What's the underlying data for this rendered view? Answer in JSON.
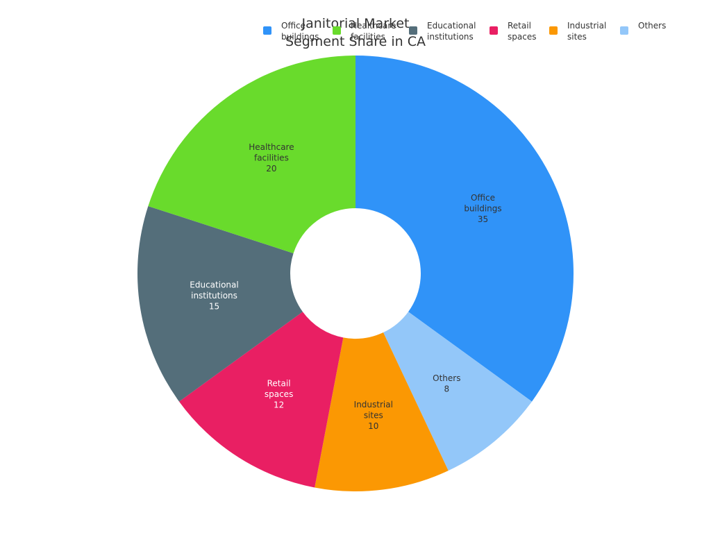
{
  "chart_data": {
    "type": "pie",
    "donut": true,
    "title": [
      "Janitorial Market",
      "Segment Share in CA"
    ],
    "legend_position": "top-right",
    "slices": [
      {
        "label": "Office buildings",
        "label_lines": [
          "Office",
          "buildings"
        ],
        "value": 35,
        "color": "#3093F8",
        "text_color": "#333333"
      },
      {
        "label": "Others",
        "label_lines": [
          "Others"
        ],
        "value": 8,
        "color": "#93C7F9",
        "text_color": "#333333"
      },
      {
        "label": "Industrial sites",
        "label_lines": [
          "Industrial",
          "sites"
        ],
        "value": 10,
        "color": "#FB9803",
        "text_color": "#333333"
      },
      {
        "label": "Retail spaces",
        "label_lines": [
          "Retail",
          "spaces"
        ],
        "value": 12,
        "color": "#E91F63",
        "text_color": "#ffffff"
      },
      {
        "label": "Educational institutions",
        "label_lines": [
          "Educational",
          "institutions"
        ],
        "value": 15,
        "color": "#546E7A",
        "text_color": "#ffffff"
      },
      {
        "label": "Healthcare facilities",
        "label_lines": [
          "Healthcare",
          "facilities"
        ],
        "value": 20,
        "color": "#69DB2C",
        "text_color": "#333333"
      }
    ],
    "legend": [
      {
        "label_lines": [
          "Office",
          "buildings"
        ],
        "color": "#3093F8"
      },
      {
        "label_lines": [
          "Healthcare",
          "facilities"
        ],
        "color": "#69DB2C"
      },
      {
        "label_lines": [
          "Educational",
          "institutions"
        ],
        "color": "#546E7A"
      },
      {
        "label_lines": [
          "Retail",
          "spaces"
        ],
        "color": "#E91F63"
      },
      {
        "label_lines": [
          "Industrial",
          "sites"
        ],
        "color": "#FB9803"
      },
      {
        "label_lines": [
          "Others"
        ],
        "color": "#93C7F9"
      }
    ]
  }
}
